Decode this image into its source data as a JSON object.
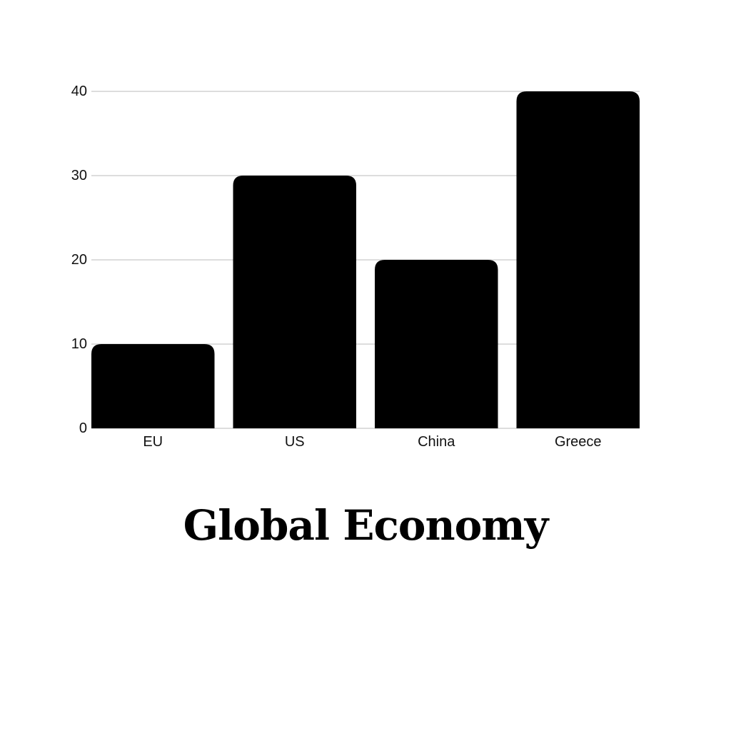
{
  "chart_data": {
    "type": "bar",
    "title": "Global Economy",
    "xlabel": "",
    "ylabel": "",
    "categories": [
      "EU",
      "US",
      "China",
      "Greece"
    ],
    "values": [
      10,
      30,
      20,
      40
    ],
    "ylim": [
      0,
      40
    ],
    "yticks": [
      0,
      10,
      20,
      30,
      40
    ],
    "grid": true,
    "legend": "none",
    "bar_color": "#000000",
    "grid_color": "#dddddd"
  }
}
